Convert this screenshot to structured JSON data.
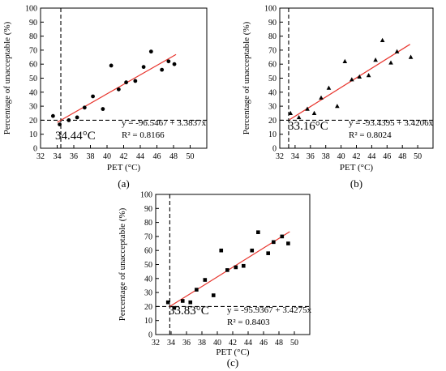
{
  "chart_data": [
    {
      "type": "scatter",
      "panel_label": "(a)",
      "xlabel": "PET (°C)",
      "ylabel": "Percentage of unacceptable (%)",
      "xlim": [
        32,
        52
      ],
      "ylim": [
        0,
        100
      ],
      "xticks": [
        32,
        34,
        36,
        38,
        40,
        42,
        44,
        46,
        48,
        50
      ],
      "yticks": [
        0,
        10,
        20,
        30,
        40,
        50,
        60,
        70,
        80,
        90,
        100
      ],
      "marker": "circle",
      "points": {
        "x": [
          33.5,
          34.3,
          35.4,
          36.4,
          37.3,
          38.3,
          39.5,
          40.5,
          41.4,
          42.3,
          43.4,
          44.4,
          45.3,
          46.6,
          47.4,
          48.1
        ],
        "y": [
          23,
          17,
          20,
          22,
          29,
          37,
          28,
          59,
          42,
          47,
          48,
          58,
          69,
          56,
          62,
          60
        ]
      },
      "fit": {
        "intercept": -96.5467,
        "slope": 3.3837,
        "x_range": [
          34.0,
          48.3
        ],
        "color": "#e8342c"
      },
      "equation": "y = -96.5467 + 3.3837x",
      "r2": "R² = 0.8166",
      "threshold_y": 20,
      "threshold_x": 34.44,
      "threshold_label": "34.44°C",
      "grid": false
    },
    {
      "type": "scatter",
      "panel_label": "(b)",
      "xlabel": "PET (°C)",
      "ylabel": "Percentage of unacceptable (%)",
      "xlim": [
        32,
        52
      ],
      "ylim": [
        0,
        100
      ],
      "xticks": [
        32,
        34,
        36,
        38,
        40,
        42,
        44,
        46,
        48,
        50
      ],
      "yticks": [
        0,
        10,
        20,
        30,
        40,
        50,
        60,
        70,
        80,
        90,
        100
      ],
      "marker": "triangle",
      "points": {
        "x": [
          33.4,
          34.5,
          35.6,
          36.5,
          37.4,
          38.4,
          39.5,
          40.5,
          41.4,
          42.4,
          43.6,
          44.5,
          45.4,
          46.5,
          47.3,
          49.1
        ],
        "y": [
          25,
          22,
          28,
          25,
          36,
          43,
          30,
          62,
          49,
          51,
          52,
          63,
          77,
          61,
          69,
          65
        ]
      },
      "fit": {
        "intercept": -93.4395,
        "slope": 3.4206,
        "x_range": [
          33.3,
          49.0
        ],
        "color": "#e8342c"
      },
      "equation": "y = -93.4395 + 3.4206x",
      "r2": "R² = 0.8024",
      "threshold_y": 20,
      "threshold_x": 33.16,
      "threshold_label": "33.16°C",
      "grid": false
    },
    {
      "type": "scatter",
      "panel_label": "(c)",
      "xlabel": "PET (°C)",
      "ylabel": "Percentage of unacceptable (%)",
      "xlim": [
        32,
        52
      ],
      "ylim": [
        0,
        100
      ],
      "xticks": [
        32,
        34,
        36,
        38,
        40,
        42,
        44,
        46,
        48,
        50
      ],
      "yticks": [
        0,
        10,
        20,
        30,
        40,
        50,
        60,
        70,
        80,
        90,
        100
      ],
      "marker": "square",
      "points": {
        "x": [
          33.6,
          34.4,
          35.5,
          36.5,
          37.3,
          38.4,
          39.5,
          40.5,
          41.3,
          42.4,
          43.4,
          44.5,
          45.3,
          46.6,
          47.3,
          48.4,
          49.2
        ],
        "y": [
          23,
          19,
          24,
          23,
          32,
          39,
          28,
          60,
          46,
          48,
          49,
          60,
          73,
          58,
          66,
          70,
          65
        ]
      },
      "fit": {
        "intercept": -95.9367,
        "slope": 3.4275,
        "x_range": [
          33.8,
          49.4
        ],
        "color": "#e8342c"
      },
      "equation": "y = -95.9367 + 3.4275x",
      "r2": "R² = 0.8403",
      "threshold_y": 20,
      "threshold_x": 33.83,
      "threshold_label": "33.83°C",
      "grid": false
    }
  ]
}
